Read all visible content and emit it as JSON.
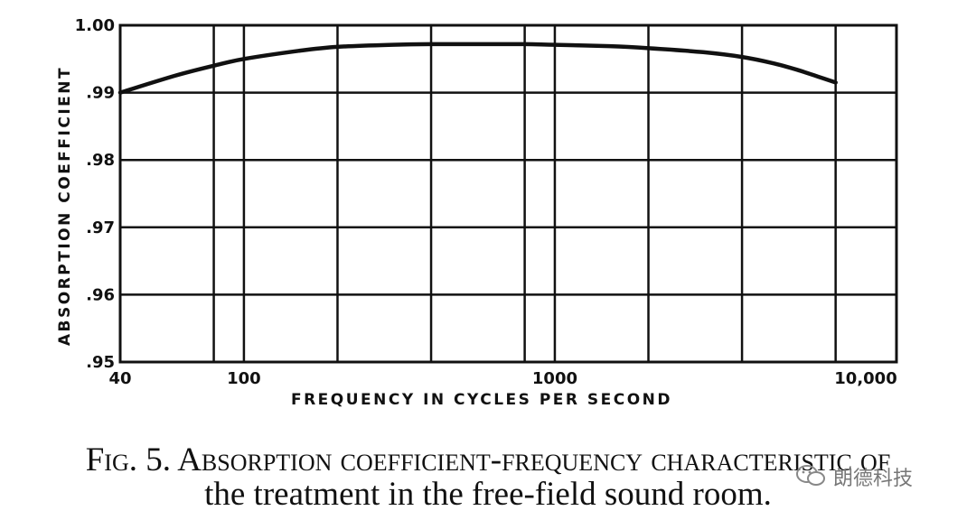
{
  "chart_data": {
    "type": "line",
    "xscale": "log",
    "xlabel": "FREQUENCY IN CYCLES PER SECOND",
    "ylabel": "ABSORPTION COEFFICIENT",
    "xlim": [
      40,
      10000
    ],
    "ylim": [
      0.95,
      1.0
    ],
    "x_ticks": [
      {
        "value": 40,
        "label": "40"
      },
      {
        "value": 100,
        "label": "100"
      },
      {
        "value": 1000,
        "label": "1000"
      },
      {
        "value": 10000,
        "label": "10,000"
      }
    ],
    "y_ticks": [
      {
        "value": 1.0,
        "label": "1.00"
      },
      {
        "value": 0.99,
        "label": ".99"
      },
      {
        "value": 0.98,
        "label": ".98"
      },
      {
        "value": 0.97,
        "label": ".97"
      },
      {
        "value": 0.96,
        "label": ".96"
      },
      {
        "value": 0.95,
        "label": ".95"
      }
    ],
    "x_gridlines": [
      80,
      100,
      200,
      400,
      800,
      1000,
      2000,
      4000,
      8000
    ],
    "y_gridlines": [
      0.99,
      0.98,
      0.97,
      0.96
    ],
    "series": [
      {
        "name": "absorption coefficient",
        "x": [
          40,
          60,
          80,
          100,
          150,
          200,
          300,
          400,
          600,
          800,
          1000,
          1500,
          2000,
          3000,
          4000,
          5000,
          6000,
          7000,
          8000
        ],
        "y": [
          0.99,
          0.9925,
          0.994,
          0.995,
          0.9962,
          0.9968,
          0.9971,
          0.9972,
          0.9972,
          0.9972,
          0.9971,
          0.9969,
          0.9966,
          0.996,
          0.9953,
          0.9944,
          0.9934,
          0.9924,
          0.9915
        ]
      }
    ]
  },
  "caption": {
    "line1": "Fig. 5. Absorption coefficient-frequency characteristic of",
    "line2": "the treatment in the free-field sound room."
  },
  "watermark": {
    "text": "朗德科技",
    "icon": "wechat-icon"
  }
}
